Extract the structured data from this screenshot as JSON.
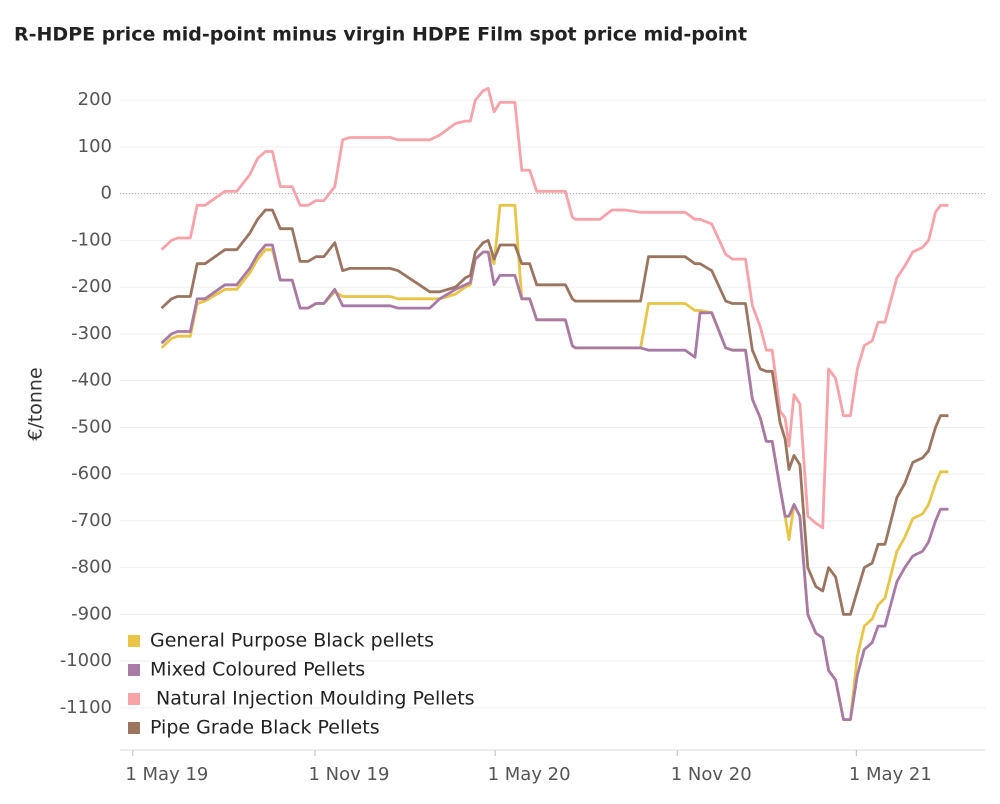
{
  "chart_data": {
    "type": "line",
    "title": "R-HDPE price mid-point minus virgin HDPE Film spot price mid-point",
    "y_label": "€/tonne",
    "x": [
      "2019-05-30",
      "2019-06-09",
      "2019-06-15",
      "2019-06-28",
      "2019-07-05",
      "2019-07-13",
      "2019-08-02",
      "2019-08-14",
      "2019-08-27",
      "2019-09-04",
      "2019-09-12",
      "2019-09-19",
      "2019-09-27",
      "2019-10-09",
      "2019-10-17",
      "2019-10-25",
      "2019-11-02",
      "2019-11-10",
      "2019-11-21",
      "2019-11-29",
      "2019-12-06",
      "2020-01-16",
      "2020-01-24",
      "2020-02-25",
      "2020-03-06",
      "2020-03-22",
      "2020-04-01",
      "2020-04-06",
      "2020-04-11",
      "2020-04-19",
      "2020-04-24",
      "2020-04-30",
      "2020-05-06",
      "2020-05-21",
      "2020-05-28",
      "2020-06-05",
      "2020-06-12",
      "2020-07-11",
      "2020-07-18",
      "2020-07-21",
      "2020-08-15",
      "2020-08-27",
      "2020-09-09",
      "2020-09-25",
      "2020-10-03",
      "2020-11-09",
      "2020-11-19",
      "2020-11-24",
      "2020-12-06",
      "2020-12-20",
      "2020-12-27",
      "2021-01-09",
      "2021-01-16",
      "2021-01-24",
      "2021-01-30",
      "2021-02-05",
      "2021-02-13",
      "2021-02-18",
      "2021-02-22",
      "2021-02-27",
      "2021-03-05",
      "2021-03-13",
      "2021-03-21",
      "2021-03-28",
      "2021-04-03",
      "2021-04-10",
      "2021-04-18",
      "2021-04-25",
      "2021-05-02",
      "2021-05-09",
      "2021-05-17",
      "2021-05-23",
      "2021-05-30",
      "2021-06-11",
      "2021-06-19",
      "2021-06-27",
      "2021-07-07",
      "2021-07-13",
      "2021-07-20",
      "2021-07-25",
      "2021-08-02"
    ],
    "series": [
      {
        "name": "General Purpose Black pellets",
        "color": "#e8c547",
        "values": [
          -330,
          -310,
          -305,
          -305,
          -235,
          -230,
          -205,
          -205,
          -170,
          -140,
          -120,
          -120,
          -185,
          -185,
          -245,
          -245,
          -235,
          -235,
          -210,
          -220,
          -220,
          -220,
          -225,
          -225,
          -225,
          -215,
          -200,
          -195,
          -140,
          -125,
          -125,
          -150,
          -25,
          -25,
          -225,
          -225,
          -270,
          -270,
          -325,
          -330,
          -330,
          -330,
          -330,
          -330,
          -235,
          -235,
          -250,
          -250,
          -255,
          -330,
          -335,
          -335,
          -440,
          -480,
          -530,
          -530,
          -630,
          -690,
          -740,
          -665,
          -690,
          -900,
          -940,
          -950,
          -1020,
          -1040,
          -1125,
          -1125,
          -990,
          -925,
          -910,
          -880,
          -865,
          -765,
          -735,
          -695,
          -685,
          -665,
          -620,
          -595,
          -595
        ]
      },
      {
        "name": "Mixed Coloured Pellets",
        "color": "#a97aa6",
        "values": [
          -320,
          -300,
          -295,
          -295,
          -225,
          -225,
          -195,
          -195,
          -160,
          -130,
          -110,
          -110,
          -185,
          -185,
          -245,
          -245,
          -235,
          -235,
          -205,
          -240,
          -240,
          -240,
          -245,
          -245,
          -225,
          -205,
          -195,
          -190,
          -140,
          -125,
          -125,
          -195,
          -175,
          -175,
          -225,
          -225,
          -270,
          -270,
          -325,
          -330,
          -330,
          -330,
          -330,
          -330,
          -335,
          -335,
          -350,
          -255,
          -255,
          -330,
          -335,
          -335,
          -440,
          -480,
          -530,
          -530,
          -630,
          -690,
          -690,
          -665,
          -690,
          -900,
          -940,
          -950,
          -1020,
          -1040,
          -1125,
          -1125,
          -1030,
          -975,
          -960,
          -925,
          -925,
          -830,
          -800,
          -775,
          -765,
          -745,
          -700,
          -675,
          -675
        ]
      },
      {
        "name": " Natural Injection Moulding Pellets",
        "color": "#f7a3a9",
        "values": [
          -120,
          -100,
          -95,
          -95,
          -25,
          -25,
          5,
          5,
          40,
          75,
          90,
          90,
          15,
          15,
          -25,
          -25,
          -15,
          -15,
          15,
          115,
          120,
          120,
          115,
          115,
          125,
          150,
          155,
          155,
          200,
          220,
          225,
          175,
          195,
          195,
          50,
          50,
          5,
          5,
          -50,
          -55,
          -55,
          -35,
          -35,
          -40,
          -40,
          -40,
          -55,
          -55,
          -65,
          -130,
          -140,
          -140,
          -240,
          -285,
          -335,
          -335,
          -465,
          -480,
          -540,
          -430,
          -450,
          -690,
          -705,
          -715,
          -375,
          -395,
          -475,
          -475,
          -375,
          -325,
          -315,
          -275,
          -275,
          -180,
          -155,
          -125,
          -115,
          -100,
          -40,
          -25,
          -25
        ]
      },
      {
        "name": "Pipe Grade Black Pellets",
        "color": "#9b7560",
        "values": [
          -245,
          -225,
          -220,
          -220,
          -150,
          -150,
          -120,
          -120,
          -85,
          -55,
          -35,
          -35,
          -75,
          -75,
          -145,
          -145,
          -135,
          -135,
          -105,
          -165,
          -160,
          -160,
          -165,
          -210,
          -210,
          -200,
          -180,
          -175,
          -125,
          -105,
          -100,
          -140,
          -110,
          -110,
          -150,
          -150,
          -195,
          -195,
          -225,
          -230,
          -230,
          -230,
          -230,
          -230,
          -135,
          -135,
          -150,
          -150,
          -165,
          -230,
          -235,
          -235,
          -335,
          -375,
          -380,
          -380,
          -490,
          -525,
          -590,
          -560,
          -580,
          -800,
          -840,
          -850,
          -800,
          -820,
          -900,
          -900,
          -850,
          -800,
          -790,
          -750,
          -750,
          -650,
          -620,
          -575,
          -565,
          -550,
          -500,
          -475,
          -475
        ]
      }
    ],
    "xlim": [
      "2019-04-18",
      "2021-09-08"
    ],
    "xticks": [
      {
        "value": "2019-05-01",
        "label": "1 May 19"
      },
      {
        "value": "2019-11-01",
        "label": "1 Nov 19"
      },
      {
        "value": "2020-05-01",
        "label": "1 May 20"
      },
      {
        "value": "2020-11-01",
        "label": "1 Nov 20"
      },
      {
        "value": "2021-05-01",
        "label": "1 May 21"
      }
    ],
    "ylim": [
      -1190,
      290
    ],
    "yticks": [
      200,
      100,
      0,
      -100,
      -200,
      -300,
      -400,
      -500,
      -600,
      -700,
      -800,
      -900,
      -1000,
      -1100
    ],
    "reference_line": 0,
    "grid": true,
    "legend": "lower left"
  }
}
